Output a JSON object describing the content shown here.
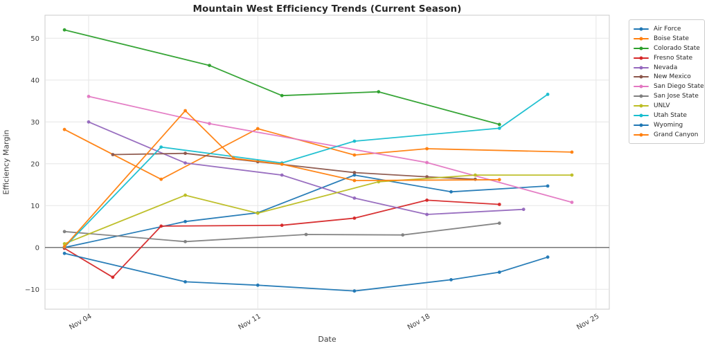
{
  "title": "Mountain West Efficiency Trends (Current Season)",
  "axes": {
    "xlabel": "Date",
    "ylabel": "Efficiency Margin",
    "xticks": [
      {
        "day": 4,
        "label": "Nov 04"
      },
      {
        "day": 11,
        "label": "Nov 11"
      },
      {
        "day": 18,
        "label": "Nov 18"
      },
      {
        "day": 25,
        "label": "Nov 25"
      }
    ],
    "yticks": [
      {
        "value": -10,
        "label": "−10"
      },
      {
        "value": 0,
        "label": "0"
      },
      {
        "value": 10,
        "label": "10"
      },
      {
        "value": 20,
        "label": "20"
      },
      {
        "value": 30,
        "label": "30"
      },
      {
        "value": 40,
        "label": "40"
      },
      {
        "value": 50,
        "label": "50"
      }
    ],
    "grid": true,
    "zero_line": true,
    "legend_position": "outside-right"
  },
  "chart_data": {
    "type": "line",
    "title": "Mountain West Efficiency Trends (Current Season)",
    "xlabel": "Date",
    "ylabel": "Efficiency Margin",
    "x_unit": "date in November (current season)",
    "ylim": [
      -14.5,
      55.5
    ],
    "xlim_days": [
      2.2,
      25.5
    ],
    "series": [
      {
        "name": "Air Force",
        "color": "#1f77b4",
        "points": [
          {
            "date": "Nov 03",
            "value": 0.0
          },
          {
            "date": "Nov 08",
            "value": 6.2
          },
          {
            "date": "Nov 11",
            "value": 8.3
          },
          {
            "date": "Nov 15",
            "value": 17.3
          },
          {
            "date": "Nov 19",
            "value": 13.3
          },
          {
            "date": "Nov 23",
            "value": 14.7
          }
        ]
      },
      {
        "name": "Boise State",
        "color": "#ff7f0e",
        "points": [
          {
            "date": "Nov 03",
            "value": 28.2
          },
          {
            "date": "Nov 07",
            "value": 16.3
          },
          {
            "date": "Nov 11",
            "value": 28.4
          },
          {
            "date": "Nov 15",
            "value": 22.1
          },
          {
            "date": "Nov 18",
            "value": 23.6
          },
          {
            "date": "Nov 24",
            "value": 22.8
          }
        ]
      },
      {
        "name": "Colorado State",
        "color": "#2ca02c",
        "points": [
          {
            "date": "Nov 03",
            "value": 52.0
          },
          {
            "date": "Nov 09",
            "value": 43.5
          },
          {
            "date": "Nov 12",
            "value": 36.3
          },
          {
            "date": "Nov 16",
            "value": 37.2
          },
          {
            "date": "Nov 21",
            "value": 29.4
          }
        ]
      },
      {
        "name": "Fresno State",
        "color": "#d62728",
        "points": [
          {
            "date": "Nov 03",
            "value": -0.2
          },
          {
            "date": "Nov 05",
            "value": -7.1
          },
          {
            "date": "Nov 07",
            "value": 5.1
          },
          {
            "date": "Nov 12",
            "value": 5.3
          },
          {
            "date": "Nov 15",
            "value": 7.0
          },
          {
            "date": "Nov 18",
            "value": 11.3
          },
          {
            "date": "Nov 21",
            "value": 10.3
          }
        ]
      },
      {
        "name": "Nevada",
        "color": "#9467bd",
        "points": [
          {
            "date": "Nov 04",
            "value": 30.0
          },
          {
            "date": "Nov 08",
            "value": 20.2
          },
          {
            "date": "Nov 12",
            "value": 17.3
          },
          {
            "date": "Nov 15",
            "value": 11.8
          },
          {
            "date": "Nov 18",
            "value": 7.9
          },
          {
            "date": "Nov 22",
            "value": 9.1
          }
        ]
      },
      {
        "name": "New Mexico",
        "color": "#8c564b",
        "points": [
          {
            "date": "Nov 05",
            "value": 22.2
          },
          {
            "date": "Nov 08",
            "value": 22.5
          },
          {
            "date": "Nov 11",
            "value": 20.5
          },
          {
            "date": "Nov 15",
            "value": 17.9
          },
          {
            "date": "Nov 18",
            "value": 16.9
          },
          {
            "date": "Nov 20",
            "value": 16.3
          }
        ]
      },
      {
        "name": "San Diego State",
        "color": "#e377c2",
        "points": [
          {
            "date": "Nov 04",
            "value": 36.1
          },
          {
            "date": "Nov 09",
            "value": 29.6
          },
          {
            "date": "Nov 18",
            "value": 20.3
          },
          {
            "date": "Nov 24",
            "value": 10.8
          }
        ]
      },
      {
        "name": "San Jose State",
        "color": "#7f7f7f",
        "points": [
          {
            "date": "Nov 03",
            "value": 3.8
          },
          {
            "date": "Nov 08",
            "value": 1.4
          },
          {
            "date": "Nov 13",
            "value": 3.1
          },
          {
            "date": "Nov 17",
            "value": 3.0
          },
          {
            "date": "Nov 21",
            "value": 5.8
          }
        ]
      },
      {
        "name": "UNLV",
        "color": "#bcbd22",
        "points": [
          {
            "date": "Nov 03",
            "value": 0.9
          },
          {
            "date": "Nov 08",
            "value": 12.5
          },
          {
            "date": "Nov 11",
            "value": 8.2
          },
          {
            "date": "Nov 16",
            "value": 15.7
          },
          {
            "date": "Nov 20",
            "value": 17.3
          },
          {
            "date": "Nov 24",
            "value": 17.3
          }
        ]
      },
      {
        "name": "Utah State",
        "color": "#17becf",
        "points": [
          {
            "date": "Nov 03",
            "value": 0.1
          },
          {
            "date": "Nov 07",
            "value": 24.0
          },
          {
            "date": "Nov 12",
            "value": 20.2
          },
          {
            "date": "Nov 15",
            "value": 25.4
          },
          {
            "date": "Nov 21",
            "value": 28.5
          },
          {
            "date": "Nov 23",
            "value": 36.6
          }
        ]
      },
      {
        "name": "Wyoming",
        "color": "#1f77b4",
        "points": [
          {
            "date": "Nov 03",
            "value": -1.4
          },
          {
            "date": "Nov 08",
            "value": -8.2
          },
          {
            "date": "Nov 11",
            "value": -9.0
          },
          {
            "date": "Nov 15",
            "value": -10.4
          },
          {
            "date": "Nov 19",
            "value": -7.7
          },
          {
            "date": "Nov 21",
            "value": -5.9
          },
          {
            "date": "Nov 23",
            "value": -2.3
          }
        ]
      },
      {
        "name": "Grand Canyon",
        "color": "#ff7f0e",
        "points": [
          {
            "date": "Nov 03",
            "value": 0.2
          },
          {
            "date": "Nov 08",
            "value": 32.7
          },
          {
            "date": "Nov 10",
            "value": 21.3
          },
          {
            "date": "Nov 12",
            "value": 19.9
          },
          {
            "date": "Nov 15",
            "value": 16.0
          },
          {
            "date": "Nov 21",
            "value": 16.2
          }
        ]
      }
    ]
  },
  "style_colors": {
    "grid": "#e6e6e6",
    "spine": "#cbcbcb",
    "zero_line": "#4d4d4d",
    "text": "#3b3b3b",
    "background": "#ffffff"
  }
}
